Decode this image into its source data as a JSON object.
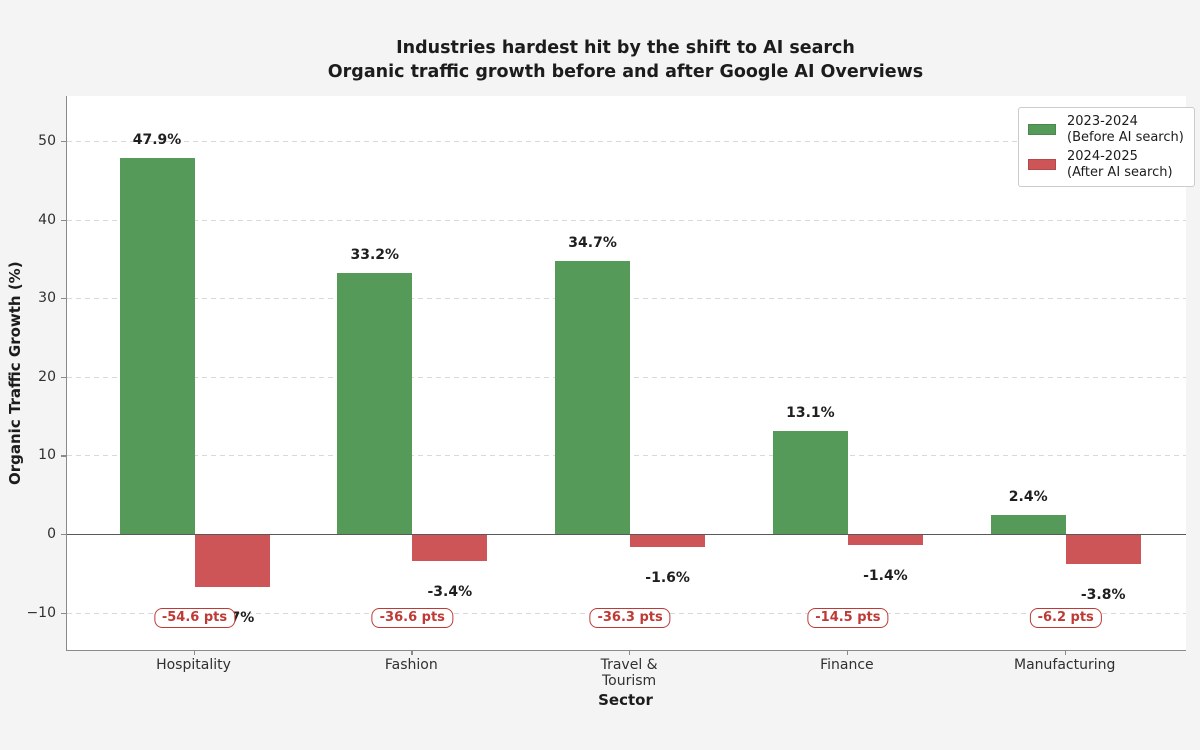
{
  "chart_data": {
    "type": "bar",
    "title": "Industries hardest hit by the shift to AI search",
    "subtitle": "Organic traffic growth before and after Google AI Overviews",
    "xlabel": "Sector",
    "ylabel": "Organic Traffic Growth (%)",
    "categories": [
      [
        "Hospitality"
      ],
      [
        "Fashion"
      ],
      [
        "Travel &",
        "Tourism"
      ],
      [
        "Finance"
      ],
      [
        "Manufacturing"
      ]
    ],
    "series": [
      {
        "name": "2023-2024 (Before AI search)",
        "legend_lines": [
          "2023-2024",
          "(Before AI search)"
        ],
        "color": "#569a5a",
        "values": [
          47.9,
          33.2,
          34.7,
          13.1,
          2.4
        ],
        "labels": [
          "47.9%",
          "33.2%",
          "34.7%",
          "13.1%",
          "2.4%"
        ]
      },
      {
        "name": "2024-2025 (After AI search)",
        "legend_lines": [
          "2024-2025",
          "(After AI search)"
        ],
        "color": "#cd5457",
        "values": [
          -6.7,
          -3.4,
          -1.6,
          -1.4,
          -3.8
        ],
        "labels": [
          "-6.7%",
          "-3.4%",
          "-1.6%",
          "-1.4%",
          "-3.8%"
        ]
      }
    ],
    "delta_labels": [
      "-54.6 pts",
      "-36.6 pts",
      "-36.3 pts",
      "-14.5 pts",
      "-6.2 pts"
    ],
    "yticks": {
      "values": [
        50,
        40,
        30,
        20,
        10,
        0,
        -10
      ],
      "labels": [
        "50",
        "40",
        "30",
        "20",
        "10",
        "0",
        "−10"
      ]
    },
    "ylim": [
      -14.8,
      55.7
    ],
    "grid": true,
    "legend_position": "upper right",
    "colors": {
      "before_bar": "#569a5a",
      "after_bar": "#cd5457",
      "delta_text": "#bf3a35",
      "delta_border": "#bf3a35",
      "gridline": "#d9d9d9",
      "zero_line": "#595959",
      "spine": "#8a8a8a",
      "figure_bg": "#f4f4f4",
      "plot_bg": "#ffffff"
    }
  }
}
